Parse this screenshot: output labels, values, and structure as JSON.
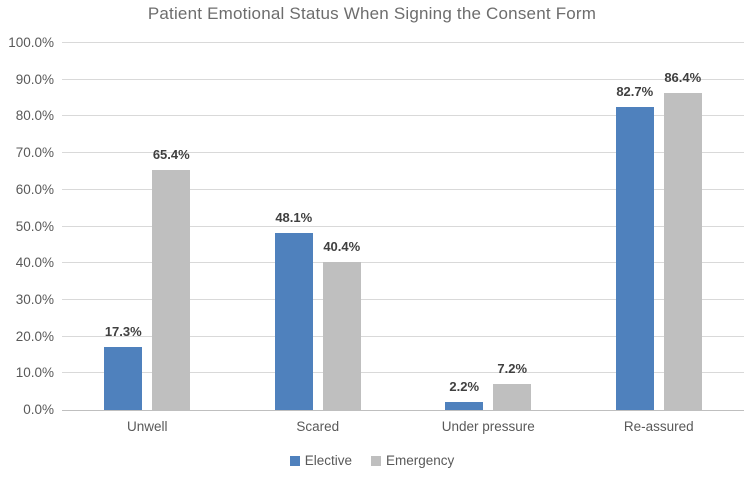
{
  "chart_data": {
    "type": "bar",
    "title": "Patient Emotional Status When Signing the Consent Form",
    "categories": [
      "Unwell",
      "Scared",
      "Under pressure",
      "Re-assured"
    ],
    "series": [
      {
        "name": "Elective",
        "color": "#4f81bd",
        "values": [
          17.3,
          48.1,
          2.2,
          82.7
        ],
        "labels": [
          "17.3%",
          "48.1%",
          "2.2%",
          "82.7%"
        ]
      },
      {
        "name": "Emergency",
        "color": "#bfbfbf",
        "values": [
          65.4,
          40.4,
          7.2,
          86.4
        ],
        "labels": [
          "65.4%",
          "40.4%",
          "7.2%",
          "86.4%"
        ]
      }
    ],
    "ylabel": "",
    "xlabel": "",
    "ylim": [
      0,
      100
    ],
    "y_ticks": [
      "0.0%",
      "10.0%",
      "20.0%",
      "30.0%",
      "40.0%",
      "50.0%",
      "60.0%",
      "70.0%",
      "80.0%",
      "90.0%",
      "100.0%"
    ],
    "grid": true,
    "legend_position": "bottom"
  },
  "style": {
    "gridline_color": "#d9d9d9",
    "axis_line_color": "#bfbfbf",
    "title_color": "#6d6d6d",
    "tick_label_color": "#595959",
    "data_label_color": "#404040",
    "background": "#ffffff"
  }
}
